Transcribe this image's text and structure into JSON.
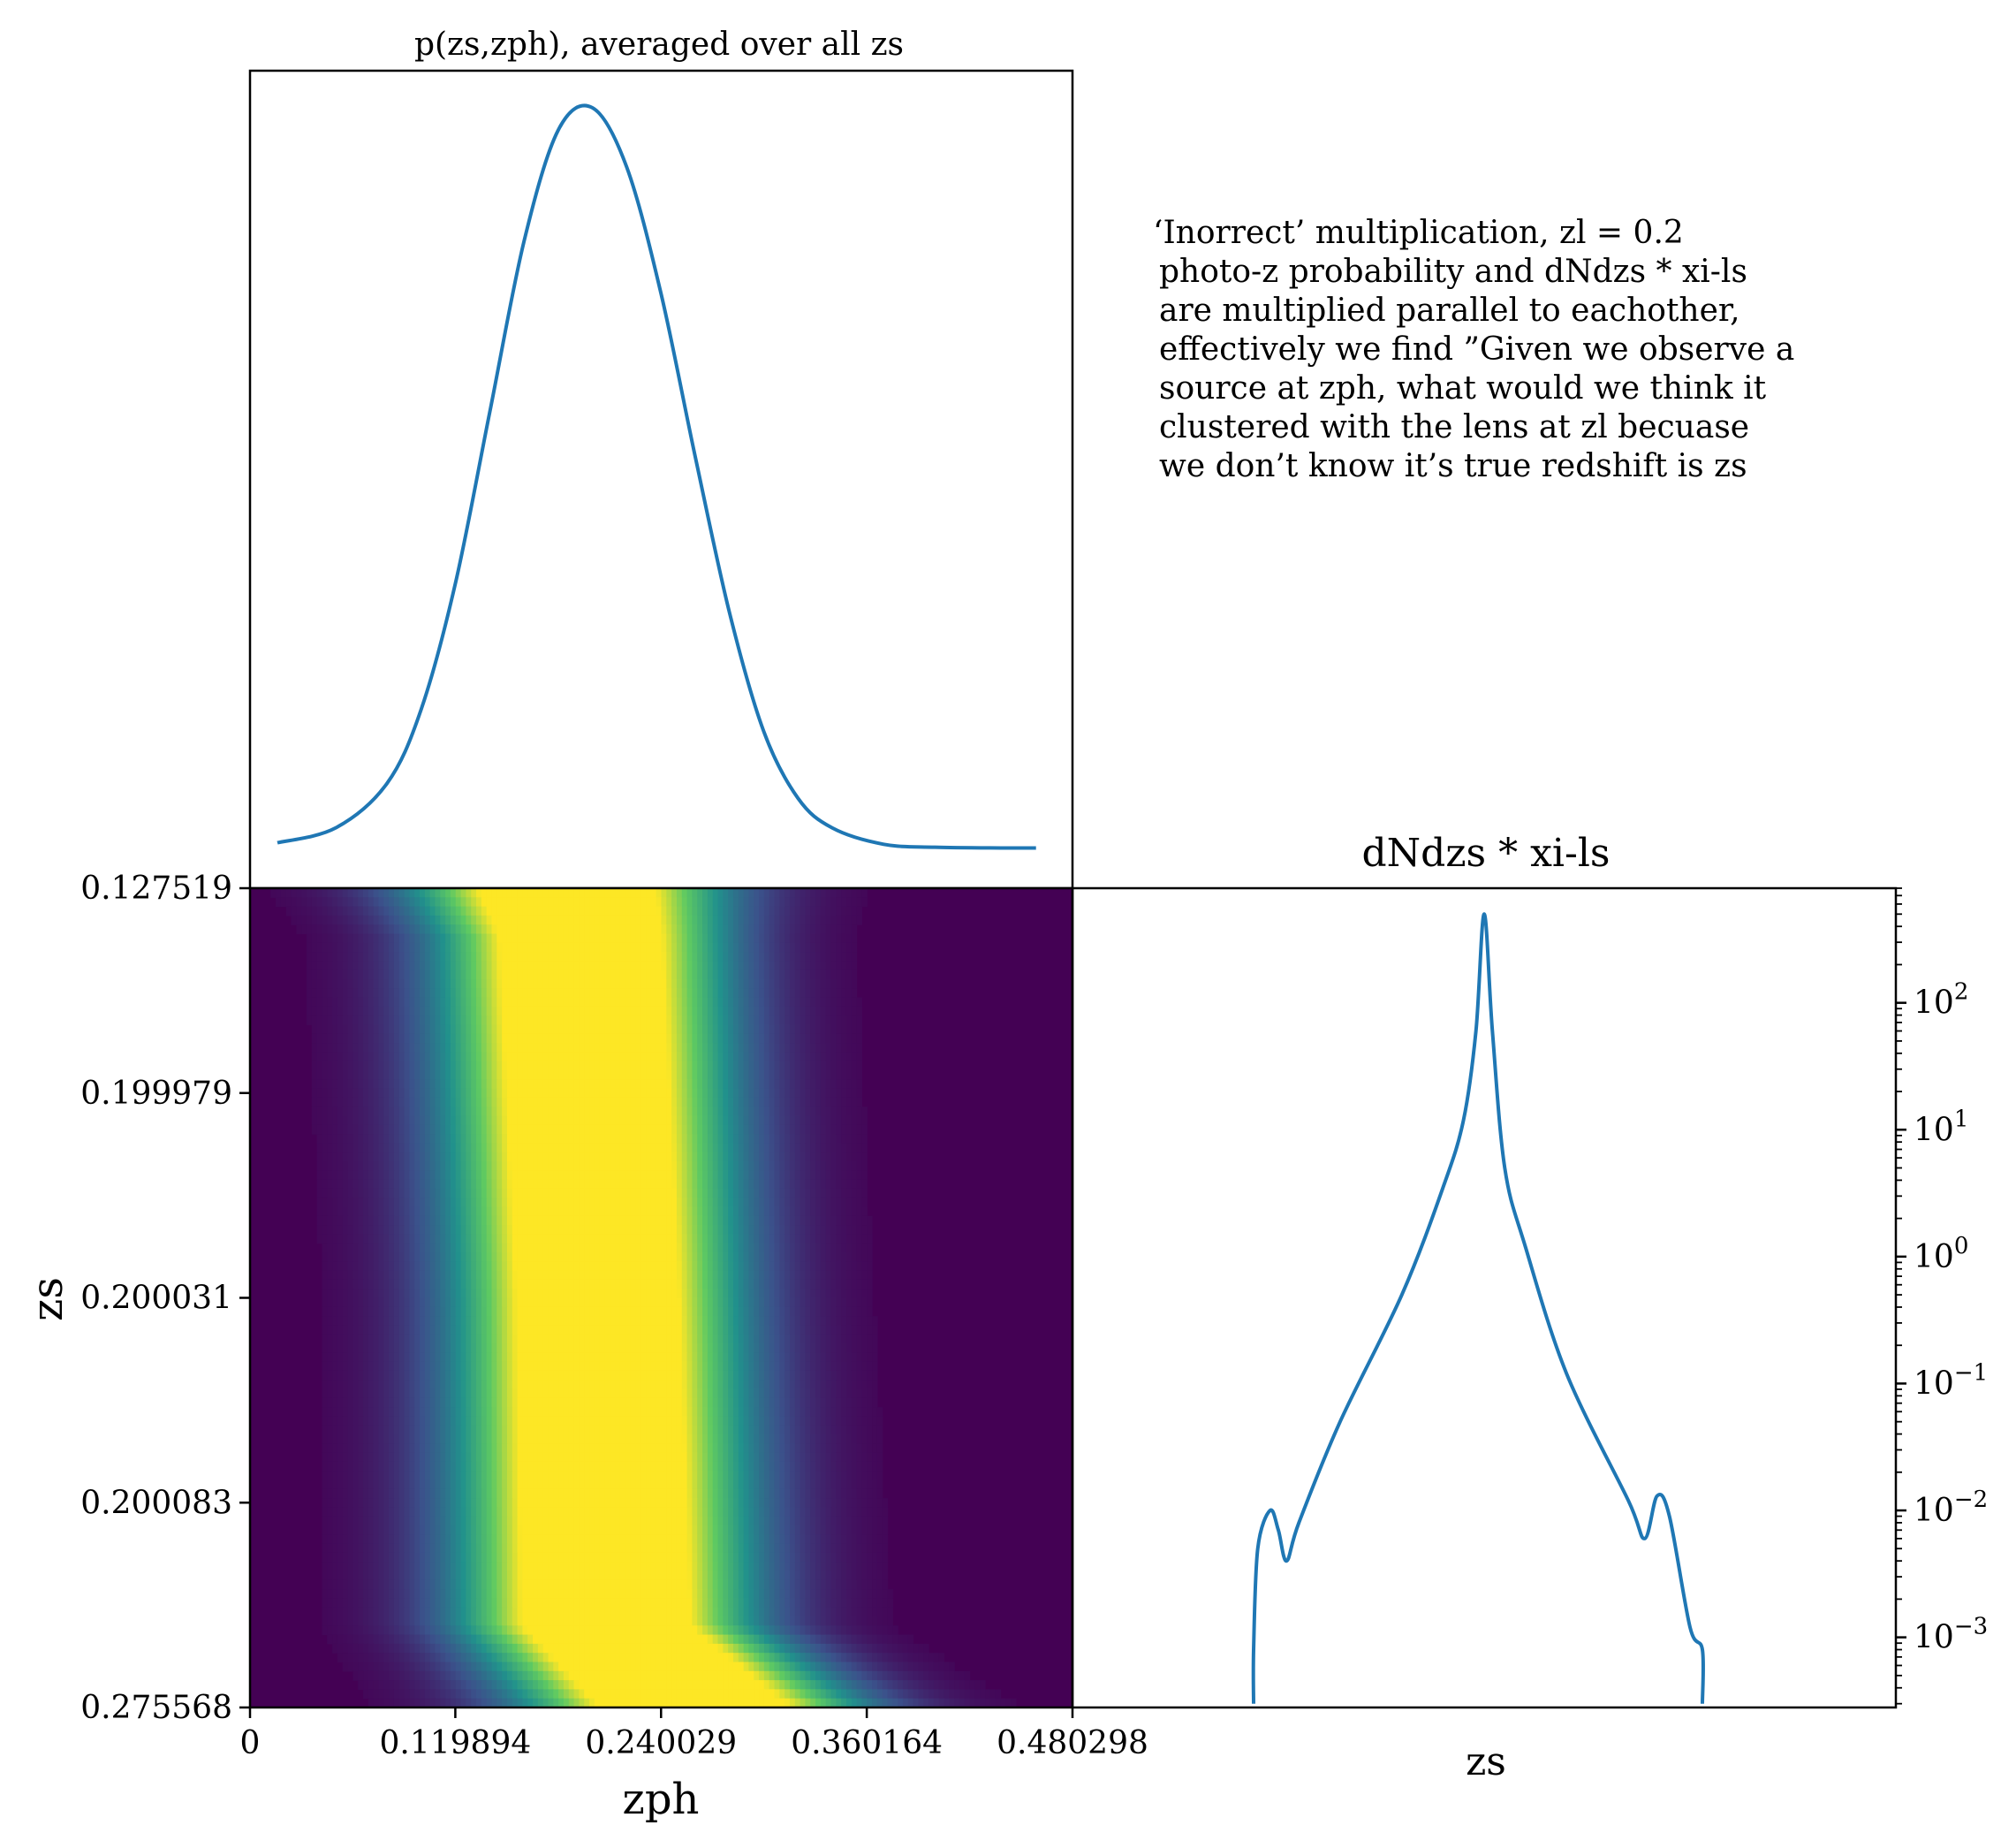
{
  "colors": {
    "line": "#1f77b4",
    "frame": "#000000",
    "viridis_low": "#440154",
    "viridis_mid": "#21918c",
    "viridis_high": "#fde725"
  },
  "annotation": {
    "lines": [
      "‘Inorrect’ multiplication, zl = 0.2",
      " photo-z probability and dNdzs * xi-ls",
      " are multiplied parallel to eachother,",
      " effectively we find ”Given we observe a",
      " source at zph, what would we think it",
      " clustered with the lens at zl becuase",
      " we don’t know it’s true redshift is zs"
    ]
  },
  "chart_data": [
    {
      "type": "line",
      "title": "p(zs,zph), averaged over all zs",
      "xlabel": "",
      "ylabel": "",
      "description": "Gaussian-like photo-z probability vs zph, no tick labels",
      "x": [
        0.016,
        0.05,
        0.08,
        0.1,
        0.12,
        0.14,
        0.16,
        0.18,
        0.2,
        0.22,
        0.24,
        0.26,
        0.28,
        0.3,
        0.32,
        0.34,
        0.37,
        0.4,
        0.44,
        0.459
      ],
      "y": [
        0.01,
        0.03,
        0.09,
        0.19,
        0.36,
        0.59,
        0.82,
        0.97,
        1.0,
        0.92,
        0.75,
        0.53,
        0.32,
        0.16,
        0.07,
        0.03,
        0.008,
        0.004,
        0.003,
        0.003
      ],
      "xlim": [
        0,
        0.480298
      ]
    },
    {
      "type": "heatmap",
      "title": "",
      "xlabel": "zph",
      "ylabel": "zs",
      "x_ticks": [
        "0",
        "0.119894",
        "0.240029",
        "0.360164",
        "0.480298"
      ],
      "y_ticks": [
        "0.127519",
        "0.199979",
        "0.200031",
        "0.200083",
        "0.275568"
      ],
      "colormap": "viridis",
      "description": "normalized p(zs,zph) per zs row; bright band centered near zph ~0.2, shifting toward higher zph at the largest zs",
      "rows": [
        {
          "zs_frac": 0.0,
          "center": 0.185,
          "width": 0.06
        },
        {
          "zs_frac": 0.06,
          "center": 0.193,
          "width": 0.055
        },
        {
          "zs_frac": 0.5,
          "center": 0.203,
          "width": 0.055
        },
        {
          "zs_frac": 0.9,
          "center": 0.208,
          "width": 0.057
        },
        {
          "zs_frac": 1.0,
          "center": 0.26,
          "width": 0.065
        }
      ]
    },
    {
      "type": "line",
      "title": "dNdzs * xi-ls",
      "xlabel": "zs",
      "ylabel": "",
      "yscale": "log",
      "y_ticks": [
        "10^2",
        "10^1",
        "10^0",
        "10^-1",
        "10^-2",
        "10^-3"
      ],
      "ylim": [
        0.00028,
        800
      ],
      "y_axis_side": "right",
      "x_range": [
        0.1,
        0.3
      ],
      "x": [
        0.144,
        0.144,
        0.145,
        0.148,
        0.15,
        0.152,
        0.155,
        0.165,
        0.18,
        0.19,
        0.195,
        0.198,
        0.2,
        0.202,
        0.205,
        0.21,
        0.22,
        0.235,
        0.239,
        0.242,
        0.245,
        0.25,
        0.253,
        0.253
      ],
      "y": [
        0.0003,
        0.0008,
        0.005,
        0.01,
        0.007,
        0.004,
        0.008,
        0.05,
        0.5,
        3.5,
        12,
        60,
        500,
        60,
        5,
        1.2,
        0.12,
        0.012,
        0.006,
        0.013,
        0.009,
        0.0012,
        0.0008,
        0.0003
      ]
    }
  ]
}
